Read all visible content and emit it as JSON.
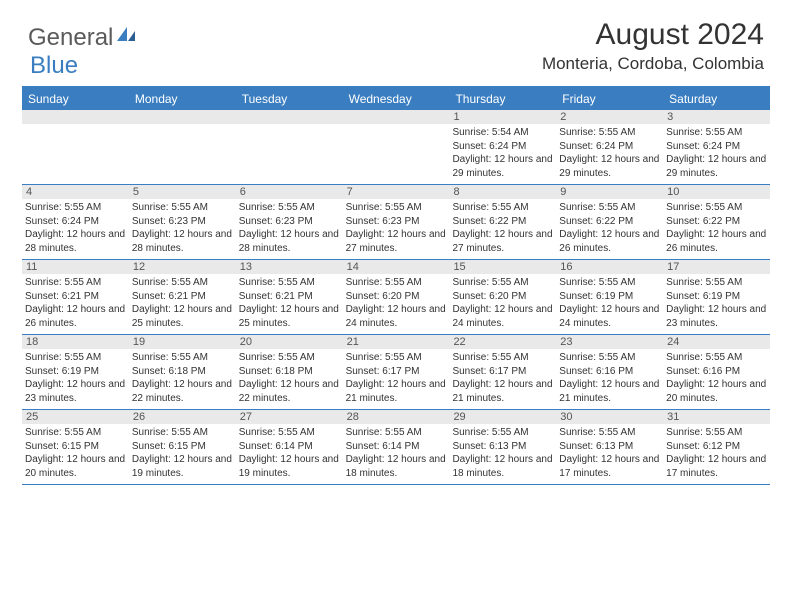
{
  "logo": {
    "text1": "General",
    "text2": "Blue"
  },
  "title": "August 2024",
  "location": "Monteria, Cordoba, Colombia",
  "colors": {
    "accent": "#3a7ec1",
    "header_text": "#ffffff",
    "daynum_bg": "#e9e9e9",
    "text": "#333333",
    "logo_gray": "#5a5a5a"
  },
  "dayNames": [
    "Sunday",
    "Monday",
    "Tuesday",
    "Wednesday",
    "Thursday",
    "Friday",
    "Saturday"
  ],
  "weeks": [
    [
      null,
      null,
      null,
      null,
      {
        "n": "1",
        "sr": "5:54 AM",
        "ss": "6:24 PM",
        "dl": "12 hours and 29 minutes."
      },
      {
        "n": "2",
        "sr": "5:55 AM",
        "ss": "6:24 PM",
        "dl": "12 hours and 29 minutes."
      },
      {
        "n": "3",
        "sr": "5:55 AM",
        "ss": "6:24 PM",
        "dl": "12 hours and 29 minutes."
      }
    ],
    [
      {
        "n": "4",
        "sr": "5:55 AM",
        "ss": "6:24 PM",
        "dl": "12 hours and 28 minutes."
      },
      {
        "n": "5",
        "sr": "5:55 AM",
        "ss": "6:23 PM",
        "dl": "12 hours and 28 minutes."
      },
      {
        "n": "6",
        "sr": "5:55 AM",
        "ss": "6:23 PM",
        "dl": "12 hours and 28 minutes."
      },
      {
        "n": "7",
        "sr": "5:55 AM",
        "ss": "6:23 PM",
        "dl": "12 hours and 27 minutes."
      },
      {
        "n": "8",
        "sr": "5:55 AM",
        "ss": "6:22 PM",
        "dl": "12 hours and 27 minutes."
      },
      {
        "n": "9",
        "sr": "5:55 AM",
        "ss": "6:22 PM",
        "dl": "12 hours and 26 minutes."
      },
      {
        "n": "10",
        "sr": "5:55 AM",
        "ss": "6:22 PM",
        "dl": "12 hours and 26 minutes."
      }
    ],
    [
      {
        "n": "11",
        "sr": "5:55 AM",
        "ss": "6:21 PM",
        "dl": "12 hours and 26 minutes."
      },
      {
        "n": "12",
        "sr": "5:55 AM",
        "ss": "6:21 PM",
        "dl": "12 hours and 25 minutes."
      },
      {
        "n": "13",
        "sr": "5:55 AM",
        "ss": "6:21 PM",
        "dl": "12 hours and 25 minutes."
      },
      {
        "n": "14",
        "sr": "5:55 AM",
        "ss": "6:20 PM",
        "dl": "12 hours and 24 minutes."
      },
      {
        "n": "15",
        "sr": "5:55 AM",
        "ss": "6:20 PM",
        "dl": "12 hours and 24 minutes."
      },
      {
        "n": "16",
        "sr": "5:55 AM",
        "ss": "6:19 PM",
        "dl": "12 hours and 24 minutes."
      },
      {
        "n": "17",
        "sr": "5:55 AM",
        "ss": "6:19 PM",
        "dl": "12 hours and 23 minutes."
      }
    ],
    [
      {
        "n": "18",
        "sr": "5:55 AM",
        "ss": "6:19 PM",
        "dl": "12 hours and 23 minutes."
      },
      {
        "n": "19",
        "sr": "5:55 AM",
        "ss": "6:18 PM",
        "dl": "12 hours and 22 minutes."
      },
      {
        "n": "20",
        "sr": "5:55 AM",
        "ss": "6:18 PM",
        "dl": "12 hours and 22 minutes."
      },
      {
        "n": "21",
        "sr": "5:55 AM",
        "ss": "6:17 PM",
        "dl": "12 hours and 21 minutes."
      },
      {
        "n": "22",
        "sr": "5:55 AM",
        "ss": "6:17 PM",
        "dl": "12 hours and 21 minutes."
      },
      {
        "n": "23",
        "sr": "5:55 AM",
        "ss": "6:16 PM",
        "dl": "12 hours and 21 minutes."
      },
      {
        "n": "24",
        "sr": "5:55 AM",
        "ss": "6:16 PM",
        "dl": "12 hours and 20 minutes."
      }
    ],
    [
      {
        "n": "25",
        "sr": "5:55 AM",
        "ss": "6:15 PM",
        "dl": "12 hours and 20 minutes."
      },
      {
        "n": "26",
        "sr": "5:55 AM",
        "ss": "6:15 PM",
        "dl": "12 hours and 19 minutes."
      },
      {
        "n": "27",
        "sr": "5:55 AM",
        "ss": "6:14 PM",
        "dl": "12 hours and 19 minutes."
      },
      {
        "n": "28",
        "sr": "5:55 AM",
        "ss": "6:14 PM",
        "dl": "12 hours and 18 minutes."
      },
      {
        "n": "29",
        "sr": "5:55 AM",
        "ss": "6:13 PM",
        "dl": "12 hours and 18 minutes."
      },
      {
        "n": "30",
        "sr": "5:55 AM",
        "ss": "6:13 PM",
        "dl": "12 hours and 17 minutes."
      },
      {
        "n": "31",
        "sr": "5:55 AM",
        "ss": "6:12 PM",
        "dl": "12 hours and 17 minutes."
      }
    ]
  ],
  "labels": {
    "sunrise": "Sunrise:",
    "sunset": "Sunset:",
    "daylight": "Daylight:"
  }
}
